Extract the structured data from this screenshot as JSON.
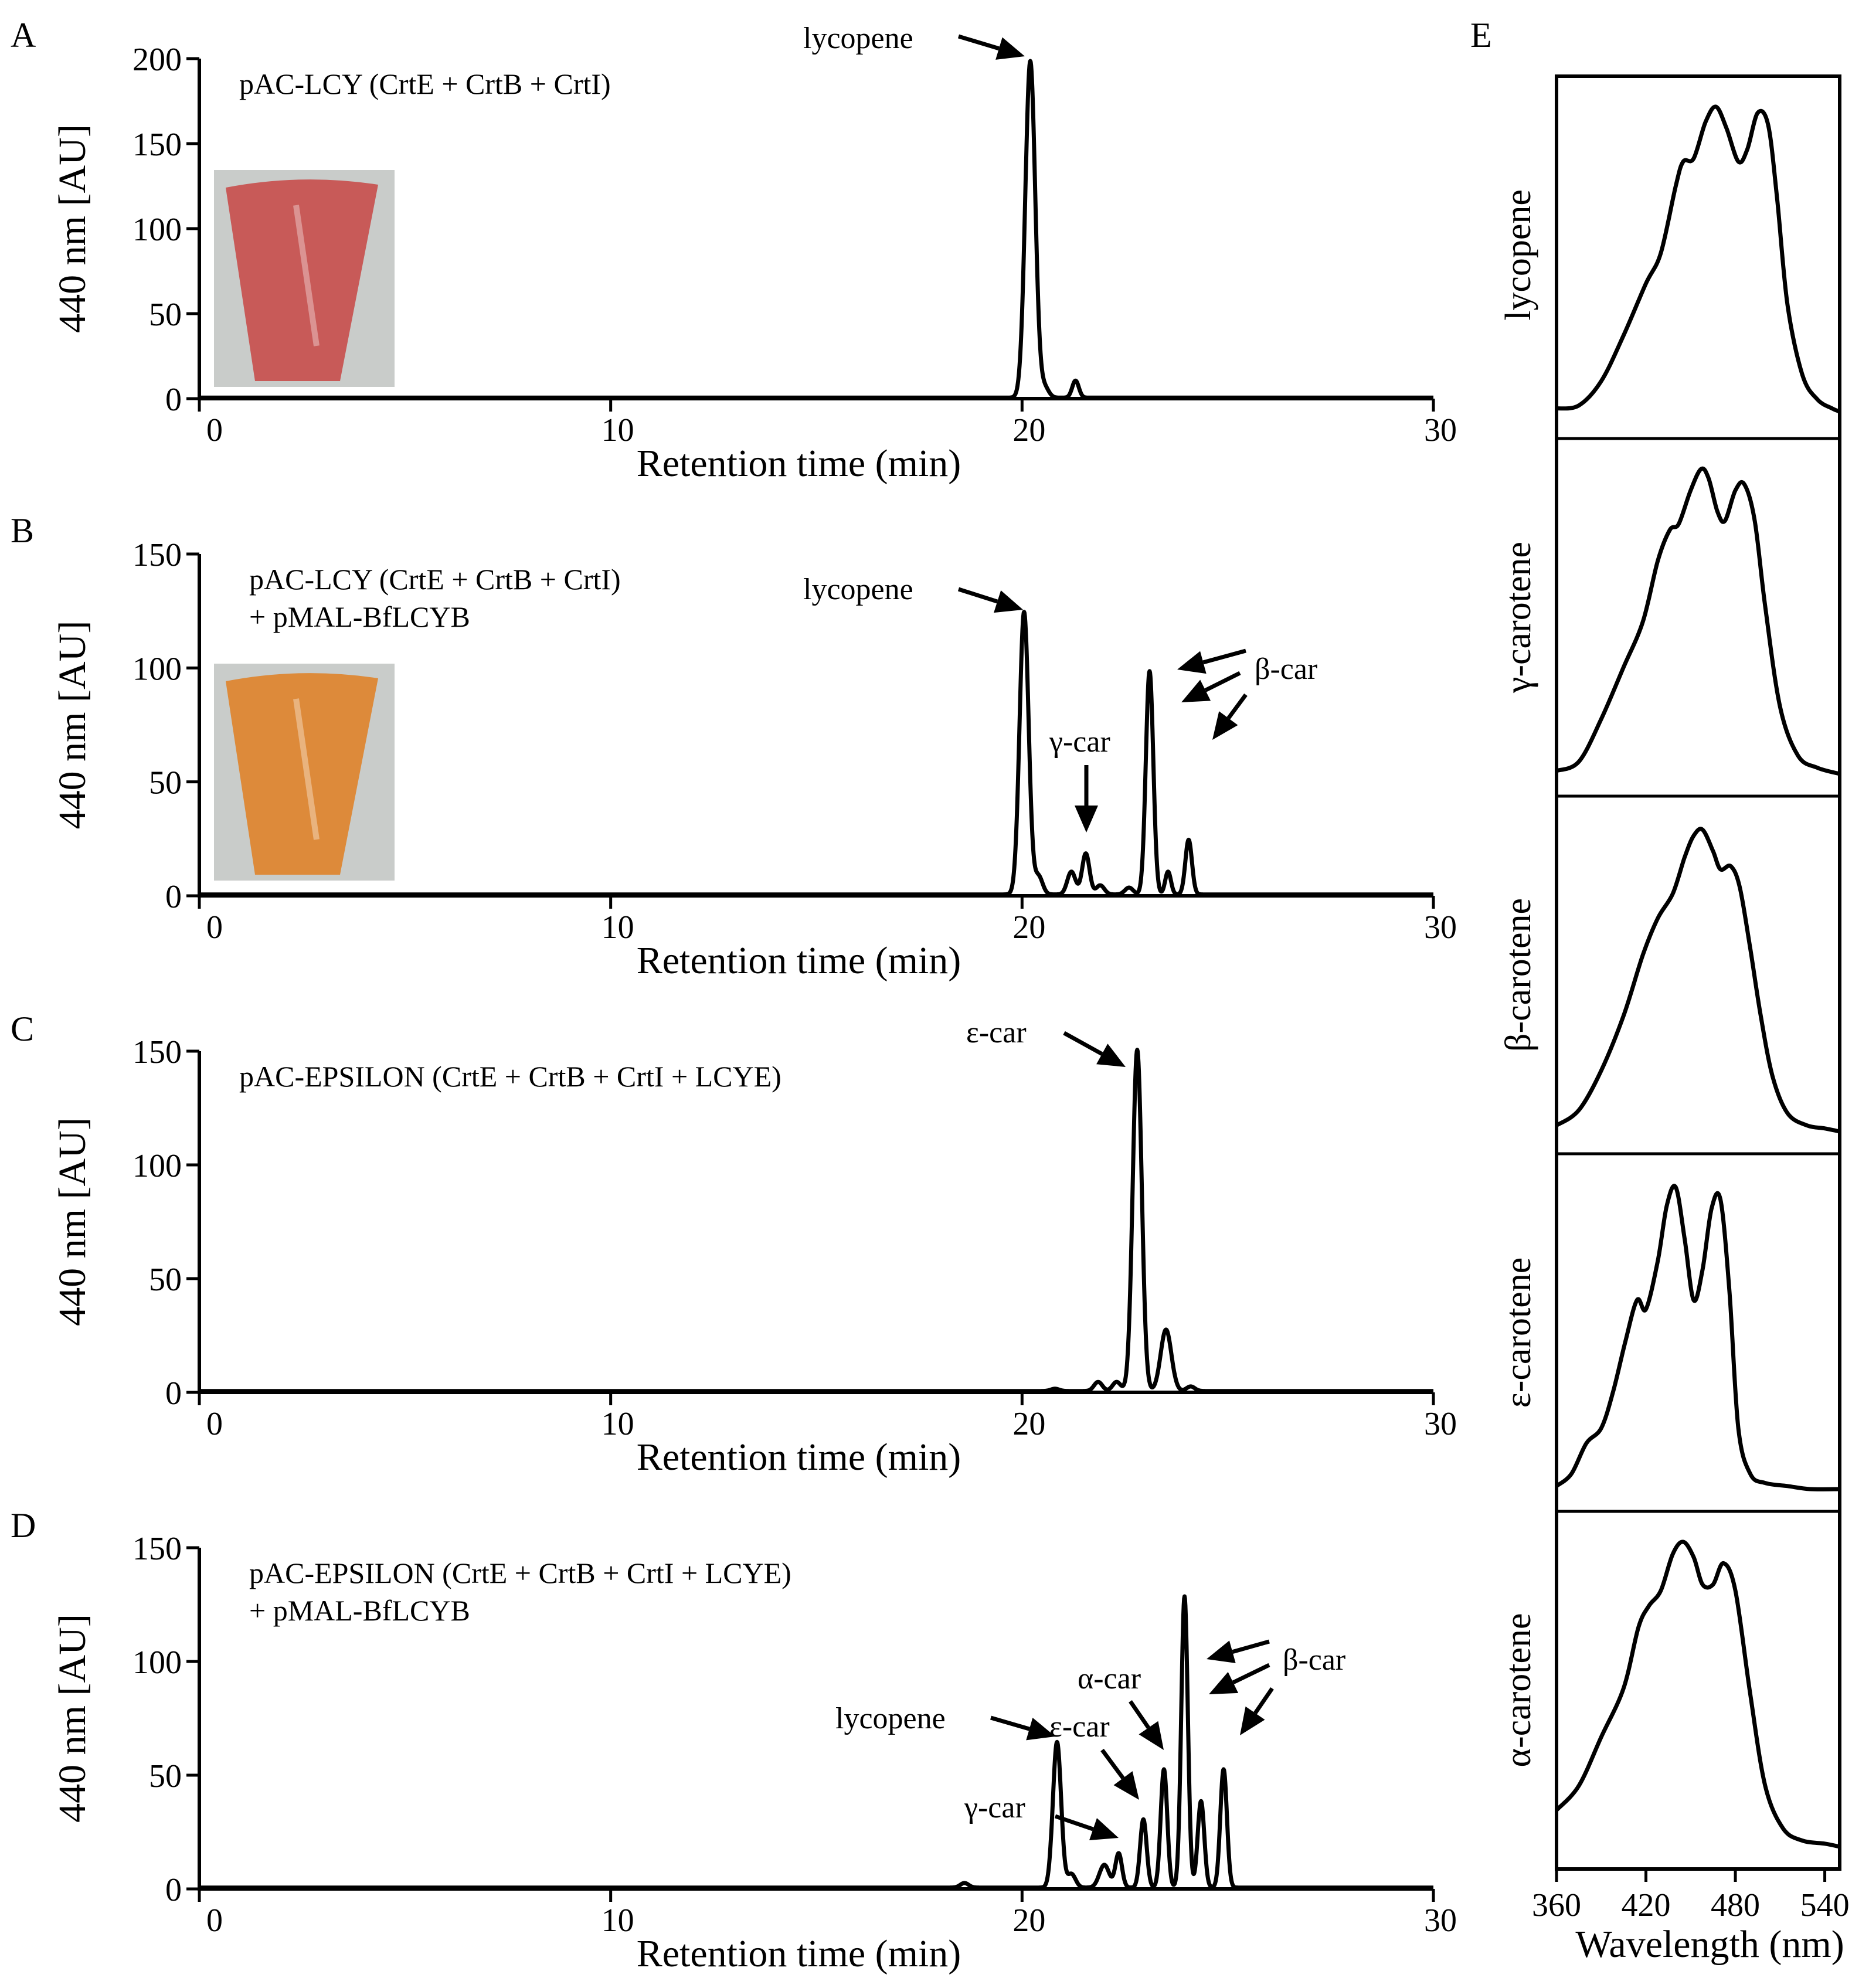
{
  "chart_data": [
    {
      "type": "line",
      "panel": "A",
      "condition_lines": [
        "pAC-LCY (CrtE + CrtB + CrtI)"
      ],
      "xlabel": "Retention time (min)",
      "ylabel": "440 nm [AU]",
      "xlim": [
        0,
        30
      ],
      "ylim": [
        0,
        200
      ],
      "xticks": [
        0,
        10,
        20,
        30
      ],
      "yticks": [
        0,
        50,
        100,
        150,
        200
      ],
      "peaks": [
        {
          "rt": 20.2,
          "height": 198,
          "width": 0.12,
          "label": "lycopene"
        },
        {
          "rt": 20.55,
          "height": 6,
          "width": 0.1,
          "label": ""
        },
        {
          "rt": 21.3,
          "height": 10,
          "width": 0.08,
          "label": ""
        }
      ],
      "photo_color": "#c85a58"
    },
    {
      "type": "line",
      "panel": "B",
      "condition_lines": [
        "pAC-LCY (CrtE + CrtB + CrtI)",
        "+ pMAL-BfLCYB"
      ],
      "xlabel": "Retention time (min)",
      "ylabel": "440 nm [AU]",
      "xlim": [
        0,
        30
      ],
      "ylim": [
        0,
        150
      ],
      "xticks": [
        0,
        10,
        20,
        30
      ],
      "yticks": [
        0,
        50,
        100,
        150
      ],
      "peaks": [
        {
          "rt": 20.05,
          "height": 124,
          "width": 0.11,
          "label": "lycopene"
        },
        {
          "rt": 20.4,
          "height": 8,
          "width": 0.1,
          "label": ""
        },
        {
          "rt": 21.2,
          "height": 10,
          "width": 0.1,
          "label": ""
        },
        {
          "rt": 21.55,
          "height": 18,
          "width": 0.09,
          "label": "γ-car"
        },
        {
          "rt": 21.9,
          "height": 4,
          "width": 0.1,
          "label": ""
        },
        {
          "rt": 22.6,
          "height": 3,
          "width": 0.1,
          "label": ""
        },
        {
          "rt": 23.1,
          "height": 98,
          "width": 0.09,
          "label": "β-car"
        },
        {
          "rt": 23.55,
          "height": 10,
          "width": 0.07,
          "label": ""
        },
        {
          "rt": 24.05,
          "height": 24,
          "width": 0.08,
          "label": ""
        }
      ],
      "photo_color": "#dd8a3a"
    },
    {
      "type": "line",
      "panel": "C",
      "condition_lines": [
        "pAC-EPSILON (CrtE + CrtB + CrtI + LCYE)"
      ],
      "xlabel": "Retention time (min)",
      "ylabel": "440 nm [AU]",
      "xlim": [
        0,
        30
      ],
      "ylim": [
        0,
        150
      ],
      "xticks": [
        0,
        10,
        20,
        30
      ],
      "yticks": [
        0,
        50,
        100,
        150
      ],
      "peaks": [
        {
          "rt": 20.8,
          "height": 1,
          "width": 0.1,
          "label": ""
        },
        {
          "rt": 21.85,
          "height": 4,
          "width": 0.1,
          "label": ""
        },
        {
          "rt": 22.3,
          "height": 4,
          "width": 0.1,
          "label": ""
        },
        {
          "rt": 22.8,
          "height": 150,
          "width": 0.11,
          "label": "ε-car"
        },
        {
          "rt": 23.5,
          "height": 27,
          "width": 0.13,
          "label": ""
        },
        {
          "rt": 24.1,
          "height": 2,
          "width": 0.1,
          "label": ""
        }
      ]
    },
    {
      "type": "line",
      "panel": "D",
      "condition_lines": [
        "pAC-EPSILON (CrtE + CrtB + CrtI + LCYE)",
        "+ pMAL-BfLCYB"
      ],
      "xlabel": "Retention time (min)",
      "ylabel": "440 nm [AU]",
      "xlim": [
        0,
        30
      ],
      "ylim": [
        0,
        150
      ],
      "xticks": [
        0,
        10,
        20,
        30
      ],
      "yticks": [
        0,
        50,
        100,
        150
      ],
      "peaks": [
        {
          "rt": 18.6,
          "height": 2,
          "width": 0.1,
          "label": ""
        },
        {
          "rt": 20.85,
          "height": 64,
          "width": 0.1,
          "label": "lycopene"
        },
        {
          "rt": 21.2,
          "height": 6,
          "width": 0.1,
          "label": ""
        },
        {
          "rt": 22.0,
          "height": 10,
          "width": 0.12,
          "label": ""
        },
        {
          "rt": 22.35,
          "height": 15,
          "width": 0.08,
          "label": "γ-car"
        },
        {
          "rt": 22.95,
          "height": 30,
          "width": 0.08,
          "label": "ε-car"
        },
        {
          "rt": 23.45,
          "height": 52,
          "width": 0.08,
          "label": "α-car"
        },
        {
          "rt": 23.95,
          "height": 128,
          "width": 0.08,
          "label": "β-car"
        },
        {
          "rt": 24.35,
          "height": 38,
          "width": 0.08,
          "label": ""
        },
        {
          "rt": 24.9,
          "height": 52,
          "width": 0.08,
          "label": ""
        }
      ]
    },
    {
      "type": "line",
      "panel": "E",
      "xlabel": "Wavelength (nm)",
      "xlim": [
        360,
        550
      ],
      "xticks": [
        360,
        420,
        480,
        540
      ],
      "spectra": [
        {
          "name": "lycopene",
          "wavelength": [
            360,
            375,
            390,
            405,
            420,
            430,
            440,
            445,
            452,
            460,
            467,
            474,
            482,
            488,
            495,
            502,
            508,
            515,
            525,
            535,
            545,
            550
          ],
          "absorbance": [
            0.01,
            0.02,
            0.1,
            0.25,
            0.42,
            0.52,
            0.74,
            0.82,
            0.83,
            0.95,
            1.0,
            0.93,
            0.82,
            0.86,
            0.98,
            0.94,
            0.7,
            0.35,
            0.12,
            0.04,
            0.01,
            0.0
          ]
        },
        {
          "name": "γ-carotene",
          "wavelength": [
            360,
            375,
            390,
            405,
            418,
            428,
            436,
            442,
            450,
            457,
            462,
            468,
            473,
            480,
            486,
            493,
            500,
            510,
            522,
            535,
            550
          ],
          "absorbance": [
            0.01,
            0.04,
            0.18,
            0.35,
            0.5,
            0.7,
            0.8,
            0.82,
            0.93,
            1.0,
            0.97,
            0.86,
            0.83,
            0.93,
            0.95,
            0.83,
            0.55,
            0.22,
            0.06,
            0.02,
            0.0
          ]
        },
        {
          "name": "β-carotene",
          "wavelength": [
            360,
            375,
            390,
            405,
            418,
            428,
            438,
            446,
            452,
            458,
            465,
            470,
            477,
            483,
            490,
            497,
            505,
            515,
            528,
            540,
            550
          ],
          "absorbance": [
            0.02,
            0.07,
            0.2,
            0.38,
            0.58,
            0.7,
            0.78,
            0.9,
            0.97,
            0.99,
            0.92,
            0.86,
            0.87,
            0.8,
            0.6,
            0.38,
            0.18,
            0.06,
            0.02,
            0.01,
            0.0
          ]
        },
        {
          "name": "ε-carotene",
          "wavelength": [
            360,
            370,
            380,
            390,
            398,
            406,
            414,
            420,
            428,
            434,
            440,
            446,
            452,
            458,
            464,
            470,
            476,
            482,
            490,
            500,
            515,
            530,
            550
          ],
          "absorbance": [
            0.01,
            0.05,
            0.15,
            0.2,
            0.32,
            0.48,
            0.62,
            0.59,
            0.75,
            0.93,
            0.99,
            0.82,
            0.62,
            0.72,
            0.92,
            0.95,
            0.65,
            0.2,
            0.05,
            0.02,
            0.01,
            0.0,
            0.0
          ]
        },
        {
          "name": "α-carotene",
          "wavelength": [
            360,
            375,
            390,
            405,
            415,
            422,
            430,
            438,
            445,
            452,
            458,
            465,
            472,
            480,
            490,
            500,
            512,
            525,
            540,
            550
          ],
          "absorbance": [
            0.12,
            0.2,
            0.36,
            0.52,
            0.72,
            0.79,
            0.84,
            0.96,
            1.0,
            0.95,
            0.86,
            0.86,
            0.93,
            0.84,
            0.5,
            0.2,
            0.06,
            0.02,
            0.01,
            0.0
          ]
        }
      ]
    }
  ],
  "labels": {
    "panel_A": "A",
    "panel_B": "B",
    "panel_C": "C",
    "panel_D": "D",
    "panel_E": "E"
  }
}
